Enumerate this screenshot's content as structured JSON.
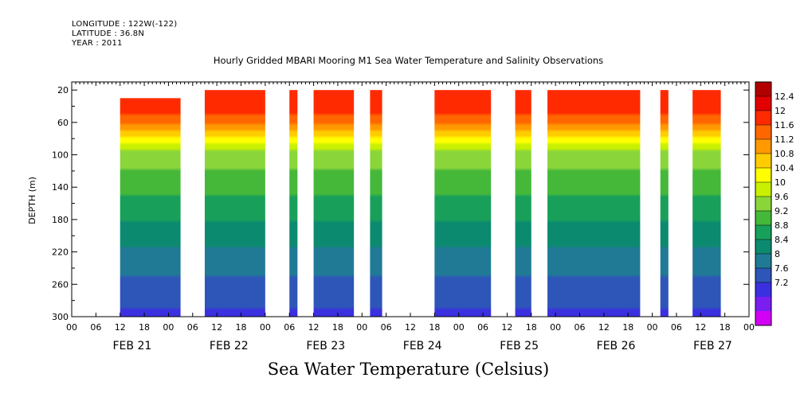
{
  "header": {
    "longitude": "LONGITUDE : 122W(-122)",
    "latitude": "LATITUDE : 36.8N",
    "year": "YEAR : 2011"
  },
  "title": "Hourly Gridded MBARI Mooring M1 Sea Water Temperature and Salinity Observations",
  "footer": "Sea Water Temperature (Celsius)",
  "chart_data": {
    "type": "heatmap",
    "title": "Hourly Gridded MBARI Mooring M1 Sea Water Temperature and Salinity Observations",
    "ylabel": "DEPTH (m)",
    "xlabel": "",
    "variable": "Sea Water Temperature (Celsius)",
    "y_axis_reversed": true,
    "ylim": [
      300,
      10
    ],
    "yticks": [
      "20",
      "60",
      "100",
      "140",
      "180",
      "220",
      "260",
      "300"
    ],
    "x_days": [
      "FEB 21",
      "FEB 22",
      "FEB 23",
      "FEB 24",
      "FEB 25",
      "FEB 26",
      "FEB 27"
    ],
    "x_hour_labels": [
      "00",
      "06",
      "12",
      "18"
    ],
    "x_range_hours": [
      -12,
      156
    ],
    "colorbar_levels": [
      12.4,
      12,
      11.6,
      11.2,
      10.8,
      10.4,
      10,
      9.6,
      9.2,
      8.8,
      8.4,
      8,
      7.6,
      7.2
    ],
    "colorbar_colors": [
      "#b20000",
      "#e30000",
      "#ff2a00",
      "#ff6600",
      "#ff9900",
      "#ffcc00",
      "#ffff00",
      "#c8f000",
      "#8ad63a",
      "#45b83a",
      "#18a05a",
      "#0c8a70",
      "#207a96",
      "#2d56b8",
      "#3b30e0",
      "#7a1ef0",
      "#d200f5"
    ],
    "data_segments": [
      {
        "start_hour": 0,
        "end_hour": 15,
        "top_depth": 30,
        "thermocline_depth": 85
      },
      {
        "start_hour": 21,
        "end_hour": 36,
        "top_depth": 20,
        "thermocline_depth": 85
      },
      {
        "start_hour": 42,
        "end_hour": 44,
        "top_depth": 20,
        "thermocline_depth": 85
      },
      {
        "start_hour": 48,
        "end_hour": 58,
        "top_depth": 20,
        "thermocline_depth": 75
      },
      {
        "start_hour": 62,
        "end_hour": 65,
        "top_depth": 20,
        "thermocline_depth": 75
      },
      {
        "start_hour": 78,
        "end_hour": 92,
        "top_depth": 20,
        "thermocline_depth": 70
      },
      {
        "start_hour": 98,
        "end_hour": 102,
        "top_depth": 20,
        "thermocline_depth": 55
      },
      {
        "start_hour": 106,
        "end_hour": 129,
        "top_depth": 20,
        "thermocline_depth": 70
      },
      {
        "start_hour": 134,
        "end_hour": 136,
        "top_depth": 20,
        "thermocline_depth": 80
      },
      {
        "start_hour": 142,
        "end_hour": 149,
        "top_depth": 20,
        "thermocline_depth": 75
      }
    ],
    "temperature_profile": [
      {
        "depth": 20,
        "temp": 12.3
      },
      {
        "depth": 40,
        "temp": 12.2
      },
      {
        "depth": 55,
        "temp": 11.9
      },
      {
        "depth": 70,
        "temp": 11.2
      },
      {
        "depth": 80,
        "temp": 10.6
      },
      {
        "depth": 90,
        "temp": 10.1
      },
      {
        "depth": 110,
        "temp": 9.7
      },
      {
        "depth": 140,
        "temp": 9.3
      },
      {
        "depth": 180,
        "temp": 8.8
      },
      {
        "depth": 220,
        "temp": 8.3
      },
      {
        "depth": 260,
        "temp": 7.9
      },
      {
        "depth": 300,
        "temp": 7.5
      }
    ]
  }
}
